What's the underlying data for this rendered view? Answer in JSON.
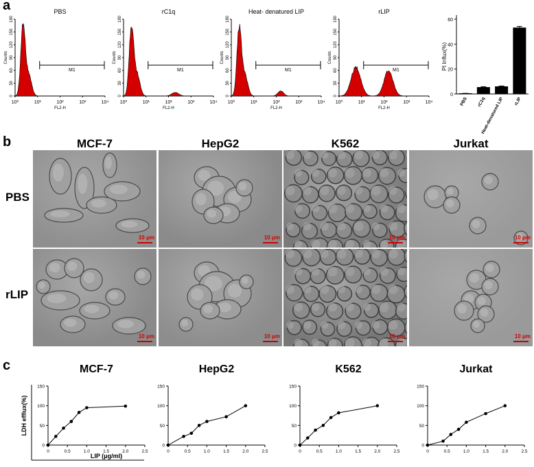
{
  "panel_labels": {
    "a": "a",
    "b": "b",
    "c": "c"
  },
  "panel_a": {
    "histograms": [
      {
        "title": "PBS",
        "gate": "M1",
        "xlabel": "FL2-H",
        "ylabel": "Counts",
        "peaks": [
          {
            "center_log": 0.35,
            "height": 0.98,
            "width": 0.14
          },
          {
            "center_log": 0.6,
            "height": 0.3,
            "width": 0.18
          }
        ]
      },
      {
        "title": "rC1q",
        "gate": "M1",
        "xlabel": "FL2-H",
        "ylabel": "Counts",
        "peaks": [
          {
            "center_log": 0.35,
            "height": 0.96,
            "width": 0.14
          },
          {
            "center_log": 0.6,
            "height": 0.3,
            "width": 0.18
          },
          {
            "center_log": 2.3,
            "height": 0.05,
            "width": 0.22
          }
        ]
      },
      {
        "title": "Heat- denatured LIP",
        "gate": "M1",
        "xlabel": "FL2-H",
        "ylabel": "Counts",
        "peaks": [
          {
            "center_log": 0.35,
            "height": 0.95,
            "width": 0.14
          },
          {
            "center_log": 0.6,
            "height": 0.3,
            "width": 0.18
          },
          {
            "center_log": 2.2,
            "height": 0.07,
            "width": 0.18
          }
        ]
      },
      {
        "title": "rLIP",
        "gate": "M1",
        "xlabel": "FL2-H",
        "ylabel": "Counts",
        "peaks": [
          {
            "center_log": 0.75,
            "height": 0.4,
            "width": 0.3
          },
          {
            "center_log": 2.2,
            "height": 0.35,
            "width": 0.28
          }
        ]
      }
    ],
    "hist_x_ticks": [
      "10⁰",
      "10¹",
      "10²",
      "10³",
      "10⁴"
    ],
    "hist_y_ticks": [
      "0",
      "30",
      "60",
      "90",
      "120",
      "150",
      "180"
    ],
    "bar_chart": {
      "ylabel": "PI Influx(%)",
      "categories": [
        "PBS",
        "rC1q",
        "Heat-denatured LIP",
        "rLIP"
      ],
      "values": [
        0.3,
        5.2,
        5.8,
        53
      ],
      "errors": [
        0.2,
        0.6,
        0.6,
        1.2
      ],
      "ylim": [
        0,
        60
      ],
      "yticks": [
        "0",
        "20",
        "40",
        "60"
      ]
    }
  },
  "panel_b": {
    "columns": [
      "MCF-7",
      "HepG2",
      "K562",
      "Jurkat"
    ],
    "rows": [
      "PBS",
      "rLIP"
    ],
    "scale_label": "10 μm"
  },
  "chart_data": [
    {
      "type": "line",
      "title": "MCF-7",
      "xlabel": "LIP (μg/ml)",
      "ylabel": "LDH efflux(%)",
      "xlim": [
        0,
        2.5
      ],
      "ylim": [
        0,
        150
      ],
      "x": [
        0,
        0.2,
        0.4,
        0.6,
        0.8,
        1.0,
        2.0
      ],
      "y": [
        0,
        22,
        43,
        60,
        83,
        95,
        99
      ]
    },
    {
      "type": "line",
      "title": "HepG2",
      "xlabel": "",
      "ylabel": "",
      "xlim": [
        0,
        2.5
      ],
      "ylim": [
        0,
        150
      ],
      "x": [
        0,
        0.4,
        0.6,
        0.8,
        1.0,
        1.5,
        2.0
      ],
      "y": [
        0,
        22,
        30,
        50,
        60,
        72,
        100
      ]
    },
    {
      "type": "line",
      "title": "K562",
      "xlabel": "",
      "ylabel": "",
      "xlim": [
        0,
        2.5
      ],
      "ylim": [
        0,
        150
      ],
      "x": [
        0,
        0.2,
        0.4,
        0.6,
        0.8,
        1.0,
        2.0
      ],
      "y": [
        0,
        18,
        38,
        50,
        70,
        82,
        100
      ]
    },
    {
      "type": "line",
      "title": "Jurkat",
      "xlabel": "",
      "ylabel": "",
      "xlim": [
        0,
        2.5
      ],
      "ylim": [
        0,
        150
      ],
      "x": [
        0,
        0.4,
        0.6,
        0.8,
        1.0,
        1.5,
        2.0
      ],
      "y": [
        0,
        10,
        27,
        40,
        58,
        80,
        100
      ]
    }
  ],
  "line_x_ticks": [
    "0",
    "0.5",
    "1.0",
    "1.5",
    "2.0",
    "2.5"
  ],
  "line_y_ticks": [
    "0",
    "50",
    "100",
    "150"
  ],
  "colors": {
    "histogram_fill": "#d40000",
    "bar_fill": "#000000",
    "scale": "#d00000"
  }
}
